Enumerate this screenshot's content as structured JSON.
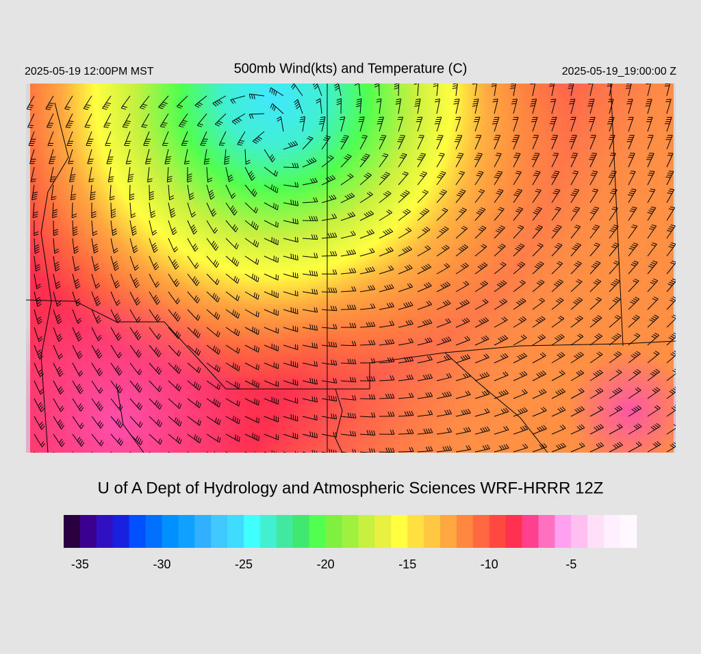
{
  "header": {
    "left": "2025-05-19 12:00PM MST",
    "title": "500mb Wind(kts) and Temperature (C)",
    "right": "2025-05-19_19:00:00 Z"
  },
  "footer": {
    "credit": "U of A Dept of Hydrology and Atmospheric Sciences WRF-HRRR 12Z"
  },
  "colorbar": {
    "lim": [
      -36,
      -1
    ],
    "ticks": [
      -35,
      -30,
      -25,
      -20,
      -15,
      -10,
      -5
    ],
    "colors": [
      "#2a0040",
      "#3a0090",
      "#3010c0",
      "#1a20e0",
      "#0050ff",
      "#0070ff",
      "#0090ff",
      "#10a0ff",
      "#30b0ff",
      "#40c8ff",
      "#40dcff",
      "#40ffff",
      "#40f0d0",
      "#40e8a0",
      "#40e870",
      "#50ff50",
      "#80f040",
      "#a0f040",
      "#c8f040",
      "#e8f040",
      "#ffff40",
      "#ffe040",
      "#ffc840",
      "#ffa840",
      "#ff8840",
      "#ff6840",
      "#ff4840",
      "#ff3050",
      "#ff4090",
      "#ff70c0",
      "#ffa0f0",
      "#ffc0f0",
      "#ffe0f8",
      "#fff0ff",
      "#fff8ff"
    ]
  }
}
